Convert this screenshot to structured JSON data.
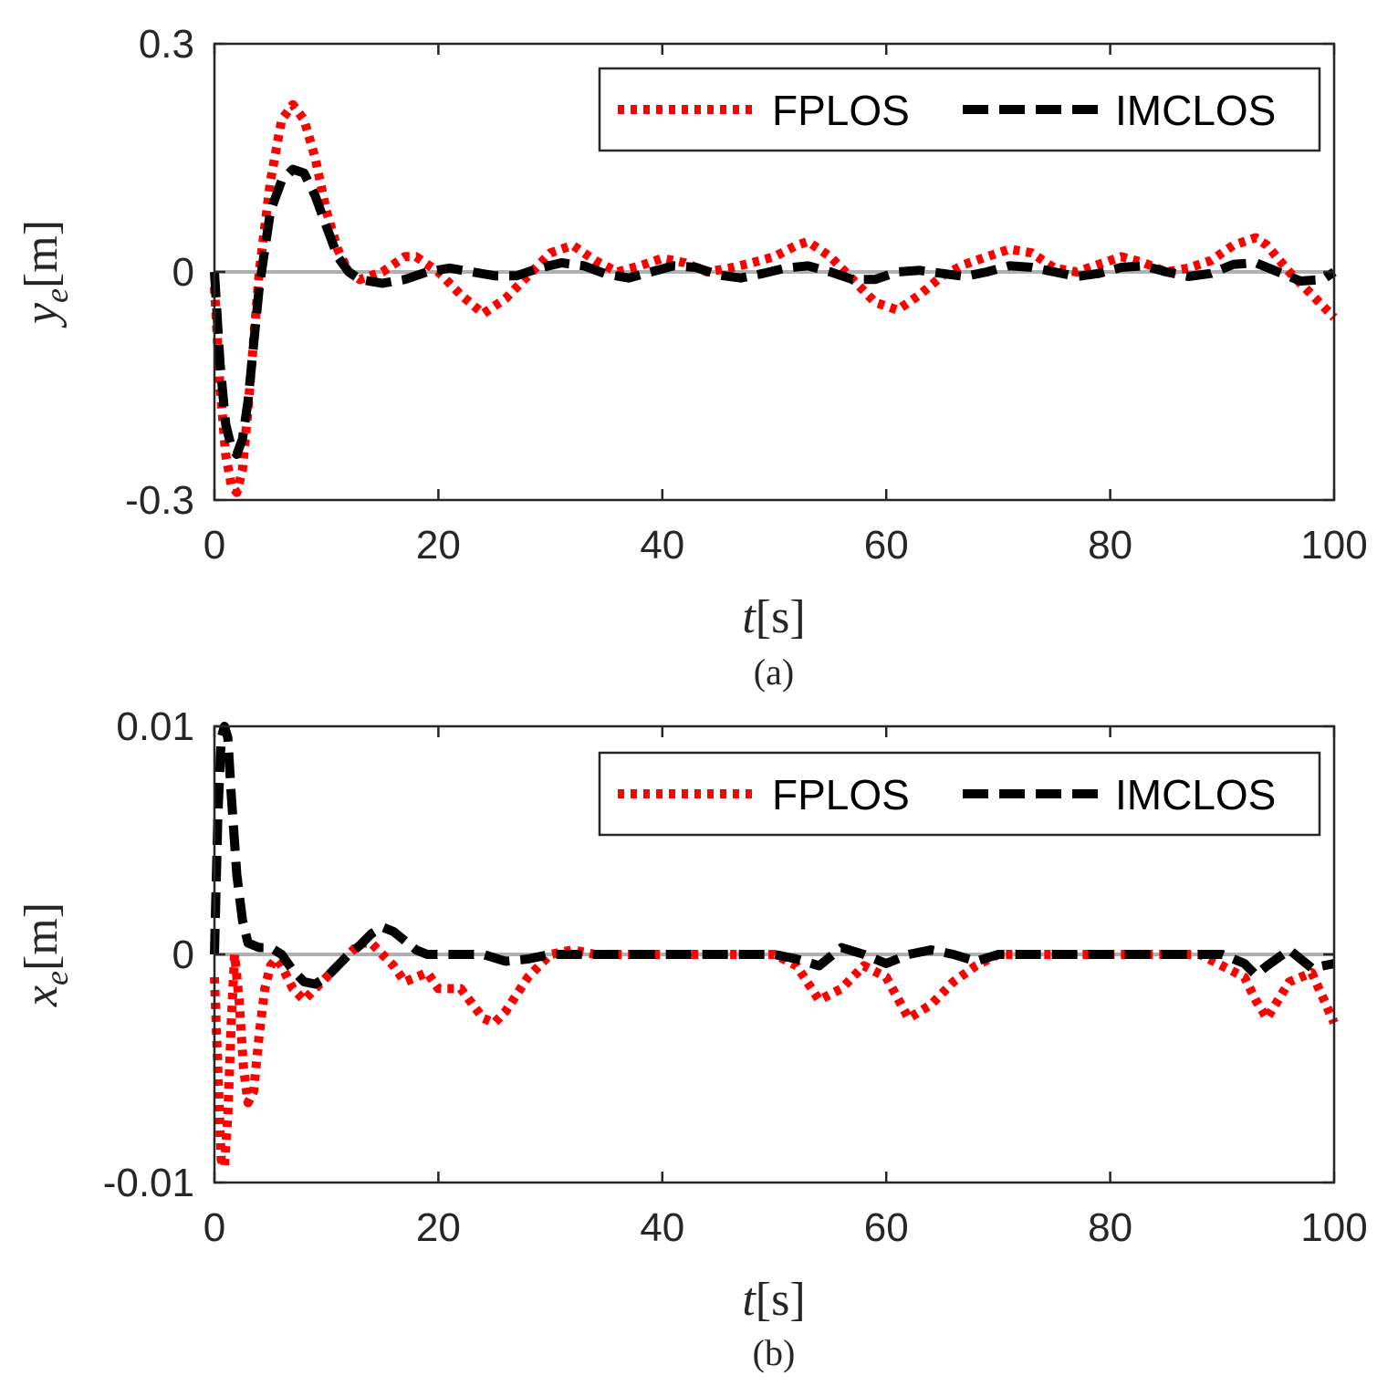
{
  "figure": {
    "subplots": [
      {
        "caption": "(a)",
        "ylabel_var": "y",
        "ylabel_sub": "e",
        "ylabel_unit": "[m]",
        "xlabel_var": "t",
        "xlabel_unit": "[s]"
      },
      {
        "caption": "(b)",
        "ylabel_var": "x",
        "ylabel_sub": "e",
        "ylabel_unit": "[m]",
        "xlabel_var": "t",
        "xlabel_unit": "[s]"
      }
    ]
  },
  "colors": {
    "fplos": "#ff0000",
    "imclos": "#000000",
    "reference": "#b0b0b0",
    "axes": "#262626"
  },
  "chart_data": [
    {
      "type": "line",
      "caption": "(a)",
      "xlabel": "t[s]",
      "ylabel": "y_e[m]",
      "xlim": [
        0,
        100
      ],
      "ylim": [
        -0.3,
        0.3
      ],
      "xticks": [
        0,
        20,
        40,
        60,
        80,
        100
      ],
      "xtick_labels": [
        "0",
        "20",
        "40",
        "60",
        "80",
        "100"
      ],
      "yticks": [
        -0.3,
        0,
        0.3
      ],
      "ytick_labels": [
        "-0.3",
        "0",
        "0.3"
      ],
      "legend_position": "top-right",
      "reference_line": 0,
      "series": [
        {
          "name": "FPLOS",
          "style": "dotted",
          "x": [
            0,
            0.5,
            1,
            1.5,
            2,
            2.5,
            3,
            4,
            5,
            6,
            7,
            8,
            9,
            10,
            11,
            12,
            13,
            15,
            17,
            18,
            20,
            22,
            24,
            26,
            28,
            30,
            32,
            34,
            36,
            38,
            40,
            42,
            44,
            46,
            48,
            50,
            52,
            53,
            55,
            57,
            59,
            61,
            63,
            65,
            67,
            69,
            71,
            73,
            75,
            77,
            79,
            81,
            83,
            85,
            87,
            89,
            91,
            93,
            94,
            96,
            98,
            100
          ],
          "y": [
            -0.02,
            -0.15,
            -0.24,
            -0.28,
            -0.29,
            -0.26,
            -0.18,
            0.0,
            0.12,
            0.2,
            0.22,
            0.2,
            0.15,
            0.08,
            0.03,
            0.0,
            -0.01,
            0.0,
            0.02,
            0.02,
            0.0,
            -0.03,
            -0.055,
            -0.035,
            -0.005,
            0.025,
            0.035,
            0.015,
            0.0,
            0.008,
            0.018,
            0.012,
            0.0,
            0.005,
            0.012,
            0.02,
            0.035,
            0.04,
            0.02,
            -0.01,
            -0.04,
            -0.05,
            -0.03,
            -0.005,
            0.01,
            0.02,
            0.03,
            0.025,
            0.005,
            0.0,
            0.01,
            0.02,
            0.012,
            0.0,
            0.005,
            0.015,
            0.035,
            0.045,
            0.035,
            0.0,
            -0.03,
            -0.06
          ]
        },
        {
          "name": "IMCLOS",
          "style": "dashed",
          "x": [
            0,
            0.5,
            1,
            1.5,
            2,
            2.5,
            3,
            4,
            5,
            6,
            7,
            8,
            9,
            10,
            11,
            12,
            13,
            15,
            17,
            19,
            21,
            23,
            25,
            27,
            29,
            31,
            33,
            35,
            37,
            39,
            41,
            43,
            45,
            47,
            49,
            51,
            53,
            55,
            57,
            59,
            61,
            63,
            65,
            67,
            69,
            71,
            73,
            75,
            77,
            79,
            81,
            83,
            85,
            87,
            89,
            91,
            93,
            95,
            97,
            99,
            100
          ],
          "y": [
            0,
            -0.12,
            -0.2,
            -0.23,
            -0.24,
            -0.22,
            -0.17,
            -0.02,
            0.08,
            0.12,
            0.135,
            0.13,
            0.1,
            0.06,
            0.02,
            0.0,
            -0.01,
            -0.015,
            -0.01,
            0.0,
            0.005,
            0.0,
            -0.005,
            -0.005,
            0.005,
            0.012,
            0.008,
            -0.003,
            -0.008,
            0.0,
            0.008,
            0.006,
            -0.004,
            -0.008,
            -0.002,
            0.005,
            0.008,
            0.0,
            -0.01,
            -0.01,
            0.0,
            0.002,
            -0.002,
            -0.006,
            0.0,
            0.008,
            0.006,
            0.0,
            -0.006,
            -0.002,
            0.006,
            0.008,
            0.0,
            -0.006,
            -0.002,
            0.01,
            0.012,
            0.0,
            -0.012,
            -0.01,
            0.0
          ]
        }
      ]
    },
    {
      "type": "line",
      "caption": "(b)",
      "xlabel": "t[s]",
      "ylabel": "x_e[m]",
      "xlim": [
        0,
        100
      ],
      "ylim": [
        -0.01,
        0.01
      ],
      "xticks": [
        0,
        20,
        40,
        60,
        80,
        100
      ],
      "xtick_labels": [
        "0",
        "20",
        "40",
        "60",
        "80",
        "100"
      ],
      "yticks": [
        -0.01,
        0,
        0.01
      ],
      "ytick_labels": [
        "-0.01",
        "0",
        "0.01"
      ],
      "legend_position": "top-right",
      "reference_line": 0,
      "series": [
        {
          "name": "FPLOS",
          "style": "dotted",
          "x": [
            0,
            0.3,
            0.6,
            0.9,
            1.2,
            1.5,
            1.8,
            2.2,
            2.6,
            3,
            3.5,
            4,
            4.5,
            5,
            5.5,
            6,
            7,
            8,
            9,
            10,
            11,
            12,
            13,
            14,
            15,
            16,
            17,
            18,
            19,
            20,
            22,
            24,
            25,
            26,
            28,
            30,
            32,
            34,
            36,
            40,
            44,
            48,
            50,
            52,
            54,
            56,
            58,
            60,
            62,
            64,
            66,
            68,
            70,
            72,
            74,
            78,
            82,
            86,
            88,
            90,
            92,
            93,
            94,
            96,
            98,
            100
          ],
          "y": [
            -0.001,
            -0.005,
            -0.009,
            -0.0093,
            -0.007,
            -0.003,
            0.0,
            -0.002,
            -0.005,
            -0.0065,
            -0.006,
            -0.0035,
            -0.0015,
            -0.0005,
            -0.0002,
            -0.0005,
            -0.0015,
            -0.002,
            -0.0015,
            -0.001,
            -0.0005,
            0.0,
            0.0005,
            0.0005,
            0.0,
            -0.0005,
            -0.0012,
            -0.001,
            -0.0008,
            -0.0015,
            -0.0015,
            -0.0028,
            -0.003,
            -0.0025,
            -0.001,
            0.0,
            0.0002,
            0.0,
            0.0,
            0.0,
            0.0,
            0.0,
            0.0,
            -0.0005,
            -0.002,
            -0.0015,
            -0.0005,
            -0.001,
            -0.0028,
            -0.0022,
            -0.0012,
            -0.0005,
            0.0,
            0.0,
            0.0,
            0.0,
            0.0,
            0.0,
            0.0,
            -0.0005,
            -0.001,
            -0.002,
            -0.0028,
            -0.0012,
            -0.0008,
            -0.003
          ]
        },
        {
          "name": "IMCLOS",
          "style": "dashed",
          "x": [
            0,
            0.3,
            0.6,
            0.9,
            1.2,
            1.5,
            2,
            2.5,
            3,
            4,
            5,
            6,
            7,
            8,
            9,
            10,
            11,
            12,
            13,
            14,
            15,
            16,
            17,
            18,
            19,
            20,
            22,
            24,
            26,
            28,
            30,
            32,
            34,
            36,
            40,
            44,
            48,
            50,
            52,
            54,
            56,
            58,
            60,
            62,
            64,
            66,
            68,
            70,
            72,
            74,
            78,
            82,
            86,
            88,
            90,
            92,
            93,
            94,
            96,
            98,
            100
          ],
          "y": [
            0,
            0.006,
            0.0095,
            0.01,
            0.0095,
            0.007,
            0.0035,
            0.0015,
            0.0005,
            0.0003,
            0.0003,
            0.0,
            -0.0007,
            -0.0012,
            -0.0013,
            -0.001,
            -0.0005,
            0.0,
            0.0004,
            0.0009,
            0.0012,
            0.001,
            0.0006,
            0.0002,
            0.0,
            0.0,
            0.0,
            0.0,
            -0.0003,
            -0.0002,
            0.0,
            0.0,
            0.0,
            0.0,
            0.0,
            0.0,
            0.0,
            0.0,
            -0.0002,
            -0.0005,
            0.0003,
            0.0,
            -0.0004,
            0.0,
            0.0002,
            0.0,
            -0.0003,
            0.0,
            0.0,
            0.0,
            0.0,
            0.0,
            0.0,
            0.0,
            0.0,
            -0.0004,
            -0.0009,
            -0.0005,
            0.0002,
            -0.0006,
            -0.0004
          ]
        }
      ]
    }
  ]
}
